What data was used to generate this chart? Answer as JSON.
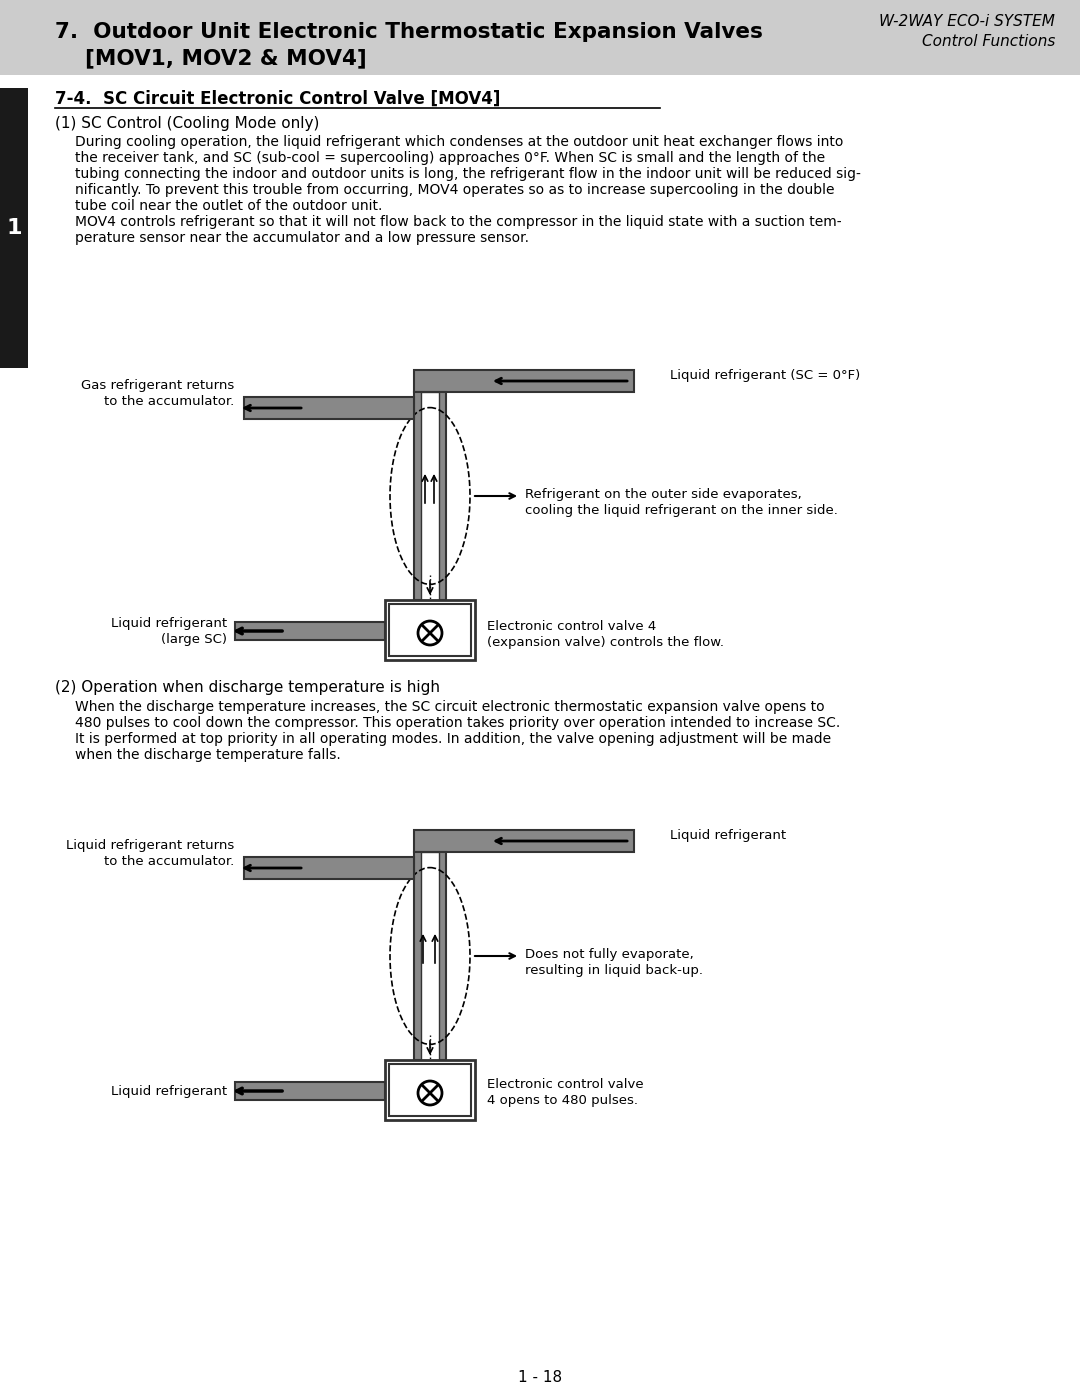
{
  "page_bg": "#ffffff",
  "header_bg": "#cccccc",
  "header_title": "7.  Outdoor Unit Electronic Thermostatic Expansion Valves\n    [MOV1, MOV2 & MOV4]",
  "header_subtitle": "W-2WAY ECO-i SYSTEM\nControl Functions",
  "section_title": "7-4.  SC Circuit Electronic Control Valve [MOV4]",
  "sub1_title": "(1) SC Control (Cooling Mode only)",
  "sub1_body": "During cooling operation, the liquid refrigerant which condenses at the outdoor unit heat exchanger flows into\nthe receiver tank, and SC (sub-cool = supercooling) approaches 0°F. When SC is small and the length of the\ntubing connecting the indoor and outdoor units is long, the refrigerant flow in the indoor unit will be reduced sig-\nnificantly. To prevent this trouble from occurring, MOV4 operates so as to increase supercooling in the double\ntube coil near the outlet of the outdoor unit.\nMOV4 controls refrigerant so that it will not flow back to the compressor in the liquid state with a suction tem-\nperature sensor near the accumulator and a low pressure sensor.",
  "sub2_title": "(2) Operation when discharge temperature is high",
  "sub2_body": "When the discharge temperature increases, the SC circuit electronic thermostatic expansion valve opens to\n480 pulses to cool down the compressor. This operation takes priority over operation intended to increase SC.\nIt is performed at top priority in all operating modes. In addition, the valve opening adjustment will be made\nwhen the discharge temperature falls.",
  "page_num": "1 - 18",
  "sidebar_color": "#1a1a1a",
  "diagram_gray": "#888888",
  "diagram_dark": "#333333",
  "diagram_light_gray": "#bbbbbb",
  "diagram1_labels": {
    "top_right": "Liquid refrigerant (SC = 0°F)",
    "top_left_line1": "Gas refrigerant returns",
    "top_left_line2": "to the accumulator.",
    "mid_right_line1": "Refrigerant on the outer side evaporates,",
    "mid_right_line2": "cooling the liquid refrigerant on the inner side.",
    "bot_left_line1": "Liquid refrigerant",
    "bot_left_line2": "(large SC)",
    "bot_right_line1": "Electronic control valve 4",
    "bot_right_line2": "(expansion valve) controls the flow."
  },
  "diagram2_labels": {
    "top_right": "Liquid refrigerant",
    "top_left_line1": "Liquid refrigerant returns",
    "top_left_line2": "to the accumulator.",
    "mid_right_line1": "Does not fully evaporate,",
    "mid_right_line2": "resulting in liquid back-up.",
    "bot_left": "Liquid refrigerant",
    "bot_right_line1": "Electronic control valve",
    "bot_right_line2": "4 opens to 480 pulses."
  }
}
